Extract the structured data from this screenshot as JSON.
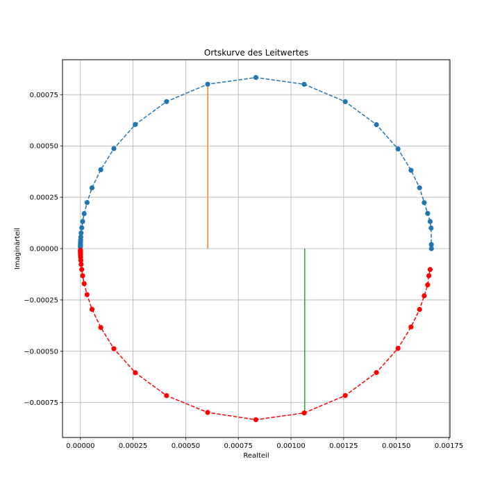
{
  "chart_data": {
    "type": "scatter",
    "title": "Ortskurve des Leitwertes",
    "xlabel": "Realteil",
    "ylabel": "Imaginärteil",
    "xlim": [
      -8.5e-05,
      0.001755
    ],
    "ylim": [
      -0.00092,
      0.00092
    ],
    "grid": true,
    "x_ticks": [
      0,
      0.00025,
      0.0005,
      0.00075,
      0.001,
      0.00125,
      0.0015,
      0.00175
    ],
    "x_tick_labels": [
      "0.00000",
      "0.00025",
      "0.00050",
      "0.00075",
      "0.00100",
      "0.00125",
      "0.00150",
      "0.00175"
    ],
    "y_ticks": [
      -0.00075,
      -0.0005,
      -0.00025,
      0,
      0.00025,
      0.0005,
      0.00075
    ],
    "y_tick_labels": [
      "−0.00075",
      "−0.00050",
      "−0.00025",
      "0.00000",
      "0.00025",
      "0.00050",
      "0.00075"
    ],
    "series": [
      {
        "color": "#1f77b4",
        "line_style": "dashed",
        "marker": "circle",
        "points": [
          [
            0.0016667,
            0.0
          ],
          [
            0.0016664,
            2e-05
          ],
          [
            0.0016654,
            9.99e-05
          ],
          [
            0.0016607,
            0.0001322
          ],
          [
            0.0016489,
            0.0001716
          ],
          [
            0.0016326,
            0.0002239
          ],
          [
            0.0016105,
            0.0002962
          ],
          [
            0.0015699,
            0.0003816
          ],
          [
            0.0015083,
            0.0004855
          ],
          [
            0.0014057,
            0.0006037
          ],
          [
            0.0012575,
            0.0007158
          ],
          [
            0.0010627,
            0.0008004
          ],
          [
            0.0008333,
            0.0008333
          ],
          [
            0.0006043,
            0.0008006
          ],
          [
            0.0004091,
            0.0007161
          ],
          [
            0.0002608,
            0.0006045
          ],
          [
            0.000159,
            0.0004873
          ],
          [
            9.68e-05,
            0.0003842
          ],
          [
            5.52e-05,
            0.0002959
          ],
          [
            3.16e-05,
            0.0002242
          ],
          [
            1.79e-05,
            0.0001707
          ],
          [
            1.06e-05,
            0.0001322
          ],
          [
            6.3e-06,
            0.0001018
          ],
          [
            3.5e-06,
            7.63e-05
          ],
          [
            2e-06,
            5.72e-05
          ],
          [
            1.1e-06,
            4.29e-05
          ],
          [
            6e-07,
            3.22e-05
          ],
          [
            3e-07,
            2.41e-05
          ],
          [
            2e-07,
            1.81e-05
          ],
          [
            1e-07,
            1.36e-05
          ],
          [
            0.0,
            1.02e-05
          ],
          [
            0.0,
            7.6e-06
          ]
        ]
      },
      {
        "color": "#ff0000",
        "line_style": "dashed",
        "marker": "circle",
        "points": [
          [
            0.0,
            -7.6e-06
          ],
          [
            0.0,
            -1.02e-05
          ],
          [
            1e-07,
            -1.36e-05
          ],
          [
            2e-07,
            -1.81e-05
          ],
          [
            3e-07,
            -2.41e-05
          ],
          [
            6e-07,
            -3.22e-05
          ],
          [
            1.1e-06,
            -4.29e-05
          ],
          [
            2e-06,
            -5.72e-05
          ],
          [
            3.5e-06,
            -7.63e-05
          ],
          [
            6.3e-06,
            -0.0001018
          ],
          [
            1.06e-05,
            -0.0001322
          ],
          [
            1.79e-05,
            -0.0001707
          ],
          [
            3.16e-05,
            -0.0002242
          ],
          [
            5.52e-05,
            -0.0002959
          ],
          [
            9.68e-05,
            -0.0003842
          ],
          [
            0.000159,
            -0.0004873
          ],
          [
            0.0002608,
            -0.0006045
          ],
          [
            0.0004091,
            -0.0007161
          ],
          [
            0.0006043,
            -0.0007979
          ],
          [
            0.0008333,
            -0.0008333
          ],
          [
            0.0010627,
            -0.0008004
          ],
          [
            0.0012575,
            -0.0007158
          ],
          [
            0.0014057,
            -0.0006037
          ],
          [
            0.0015083,
            -0.0004855
          ],
          [
            0.0015699,
            -0.0003816
          ],
          [
            0.0016105,
            -0.0002962
          ],
          [
            0.0016326,
            -0.0002299
          ],
          [
            0.0016489,
            -0.0001766
          ],
          [
            0.0016547,
            -0.0001322
          ],
          [
            0.0016607,
            -0.0001018
          ]
        ]
      }
    ],
    "vertical_lines": [
      {
        "color": "#ff7f0e",
        "x": 0.000605,
        "y_from": 0.0,
        "y_to": 0.0008
      },
      {
        "color": "#2ca02c",
        "x": 0.001065,
        "y_from": 0.0,
        "y_to": -0.0008
      }
    ]
  }
}
